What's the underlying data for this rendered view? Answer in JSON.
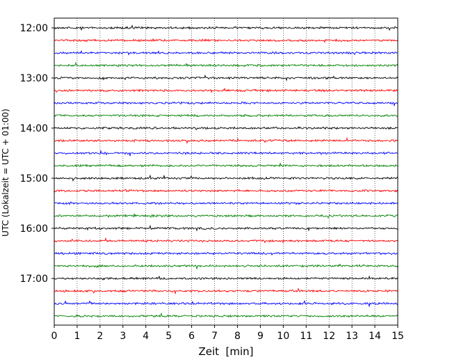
{
  "chart_data": {
    "type": "line",
    "title": "",
    "xlabel": "Zeit  [min]",
    "ylabel": "UTC (Lokalzeit = UTC + 01:00)",
    "xlim": [
      0,
      15
    ],
    "x_ticks": [
      0,
      1,
      2,
      3,
      4,
      5,
      6,
      7,
      8,
      9,
      10,
      11,
      12,
      13,
      14,
      15
    ],
    "x_tick_labels": [
      "0",
      "1",
      "2",
      "3",
      "4",
      "5",
      "6",
      "7",
      "8",
      "9",
      "10",
      "11",
      "12",
      "13",
      "14",
      "15"
    ],
    "y_tick_labels": [
      "12:00",
      "13:00",
      "14:00",
      "15:00",
      "16:00",
      "17:00"
    ],
    "y_range": [
      "11:45",
      "18:00"
    ],
    "grid": "vertical dotted lines at each minute",
    "trace_interval_minutes": 15,
    "color_cycle": [
      "#000000",
      "#ff0000",
      "#0000ff",
      "#008000"
    ],
    "traces": [
      {
        "start": "12:00",
        "color": "#000000"
      },
      {
        "start": "12:15",
        "color": "#ff0000"
      },
      {
        "start": "12:30",
        "color": "#0000ff"
      },
      {
        "start": "12:45",
        "color": "#008000"
      },
      {
        "start": "13:00",
        "color": "#000000"
      },
      {
        "start": "13:15",
        "color": "#ff0000"
      },
      {
        "start": "13:30",
        "color": "#0000ff"
      },
      {
        "start": "13:45",
        "color": "#008000"
      },
      {
        "start": "14:00",
        "color": "#000000"
      },
      {
        "start": "14:15",
        "color": "#ff0000"
      },
      {
        "start": "14:30",
        "color": "#0000ff"
      },
      {
        "start": "14:45",
        "color": "#008000"
      },
      {
        "start": "15:00",
        "color": "#000000"
      },
      {
        "start": "15:15",
        "color": "#ff0000"
      },
      {
        "start": "15:30",
        "color": "#0000ff"
      },
      {
        "start": "15:45",
        "color": "#008000"
      },
      {
        "start": "16:00",
        "color": "#000000"
      },
      {
        "start": "16:15",
        "color": "#ff0000"
      },
      {
        "start": "16:30",
        "color": "#0000ff"
      },
      {
        "start": "16:45",
        "color": "#008000"
      },
      {
        "start": "17:00",
        "color": "#000000"
      },
      {
        "start": "17:15",
        "color": "#ff0000"
      },
      {
        "start": "17:30",
        "color": "#0000ff"
      },
      {
        "start": "17:45",
        "color": "#008000"
      }
    ]
  }
}
